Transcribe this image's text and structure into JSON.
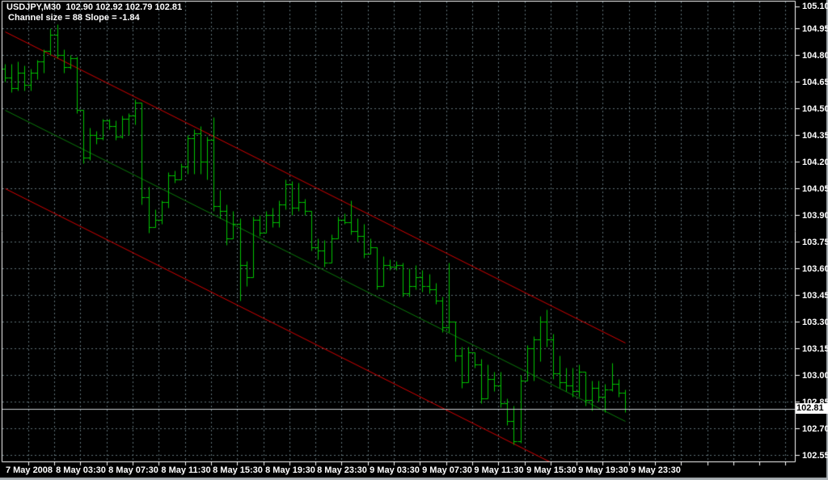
{
  "title": {
    "symbol_line": "USDJPY,M30  102.90 102.92 102.79 102.81",
    "channel_line": "Channel size = 88 Slope = -1.84"
  },
  "price_axis": {
    "labels": [
      "105.10",
      "104.95",
      "104.80",
      "104.65",
      "104.50",
      "104.35",
      "104.20",
      "104.05",
      "103.90",
      "103.75",
      "103.60",
      "103.45",
      "103.30",
      "103.15",
      "103.00",
      "102.85",
      "102.70",
      "102.55"
    ],
    "current_price": "102.81"
  },
  "time_axis": {
    "labels": [
      "7 May 2008",
      "8 May 03:30",
      "8 May 07:30",
      "8 May 11:30",
      "8 May 15:30",
      "8 May 19:30",
      "8 May 23:30",
      "9 May 03:30",
      "9 May 07:30",
      "9 May 11:30",
      "9 May 15:30",
      "9 May 19:30",
      "9 May 23:30"
    ]
  },
  "colors": {
    "background": "#000000",
    "bar": "#00c400",
    "grid": "#5f7077",
    "channel_outer": "#d40000",
    "channel_middle": "#0a7a0a",
    "text": "#ffffff",
    "current_price_line": "#c8cdd1",
    "frame": "#ffffff",
    "window_edge": "#aab0b5"
  },
  "chart_data": {
    "type": "bar",
    "subtype": "ohlc-bars",
    "symbol": "USDJPY",
    "timeframe": "M30",
    "title": "USDJPY,M30  102.90 102.92 102.79 102.81",
    "indicator": {
      "label": "Channel size = 88 Slope = -1.84",
      "channel_size_pips": 88,
      "slope": -1.84
    },
    "last_bar": {
      "open": 102.9,
      "high": 102.92,
      "low": 102.79,
      "close": 102.81
    },
    "current_price": 102.81,
    "ylim": [
      102.52,
      105.11
    ],
    "grid_price_step": 0.15,
    "price_tick_labels": [
      105.1,
      104.95,
      104.8,
      104.65,
      104.5,
      104.35,
      104.2,
      104.05,
      103.9,
      103.75,
      103.6,
      103.45,
      103.3,
      103.15,
      103.0,
      102.85,
      102.7,
      102.55
    ],
    "time_tick_labels": [
      "7 May 2008",
      "8 May 03:30",
      "8 May 07:30",
      "8 May 11:30",
      "8 May 15:30",
      "8 May 19:30",
      "8 May 23:30",
      "9 May 03:30",
      "9 May 07:30",
      "9 May 11:30",
      "9 May 15:30",
      "9 May 19:30",
      "9 May 23:30"
    ],
    "channel_lines": {
      "upper_start_price": 104.93,
      "middle_start_price": 104.49,
      "lower_start_price": 104.05,
      "slope_price_per_bar": -0.0184,
      "start_bar": 0,
      "end_bar": 95
    },
    "bars_ohlc": [
      [
        104.72,
        104.75,
        104.65,
        104.67
      ],
      [
        104.67,
        104.75,
        104.59,
        104.61
      ],
      [
        104.61,
        104.76,
        104.6,
        104.7
      ],
      [
        104.7,
        104.74,
        104.6,
        104.63
      ],
      [
        104.63,
        104.72,
        104.6,
        104.7
      ],
      [
        104.7,
        104.77,
        104.66,
        104.76
      ],
      [
        104.76,
        104.83,
        104.7,
        104.82
      ],
      [
        104.82,
        104.95,
        104.8,
        104.91
      ],
      [
        104.91,
        104.97,
        104.78,
        104.8
      ],
      [
        104.8,
        104.83,
        104.7,
        104.73
      ],
      [
        104.73,
        104.8,
        104.72,
        104.78
      ],
      [
        104.78,
        104.79,
        104.47,
        104.49
      ],
      [
        104.49,
        104.49,
        104.19,
        104.22
      ],
      [
        104.22,
        104.39,
        104.21,
        104.35
      ],
      [
        104.35,
        104.37,
        104.3,
        104.33
      ],
      [
        104.33,
        104.44,
        104.32,
        104.43
      ],
      [
        104.43,
        104.44,
        104.38,
        104.4
      ],
      [
        104.4,
        104.43,
        104.32,
        104.34
      ],
      [
        104.34,
        104.46,
        104.33,
        104.44
      ],
      [
        104.44,
        104.47,
        104.35,
        104.46
      ],
      [
        104.46,
        104.55,
        104.41,
        104.53
      ],
      [
        104.53,
        104.53,
        103.96,
        104.0
      ],
      [
        104.0,
        104.06,
        103.8,
        103.83
      ],
      [
        103.83,
        103.93,
        103.83,
        103.87
      ],
      [
        103.87,
        103.98,
        103.85,
        103.97
      ],
      [
        103.97,
        104.14,
        103.94,
        104.12
      ],
      [
        104.12,
        104.15,
        104.08,
        104.1
      ],
      [
        104.1,
        104.19,
        104.1,
        104.17
      ],
      [
        104.17,
        104.35,
        104.13,
        104.33
      ],
      [
        104.33,
        104.38,
        104.13,
        104.36
      ],
      [
        104.36,
        104.4,
        104.13,
        104.2
      ],
      [
        104.2,
        104.34,
        104.1,
        104.32
      ],
      [
        104.32,
        104.45,
        103.92,
        103.95
      ],
      [
        103.95,
        104.04,
        103.88,
        103.92
      ],
      [
        103.92,
        103.96,
        103.73,
        103.77
      ],
      [
        103.77,
        103.92,
        103.77,
        103.85
      ],
      [
        103.85,
        103.88,
        103.42,
        103.62
      ],
      [
        103.62,
        103.64,
        103.5,
        103.55
      ],
      [
        103.55,
        103.89,
        103.55,
        103.87
      ],
      [
        103.87,
        103.9,
        103.78,
        103.8
      ],
      [
        103.8,
        103.92,
        103.8,
        103.9
      ],
      [
        103.9,
        103.94,
        103.83,
        103.86
      ],
      [
        103.86,
        103.98,
        103.83,
        103.96
      ],
      [
        103.96,
        104.1,
        103.93,
        104.07
      ],
      [
        104.07,
        104.09,
        103.9,
        103.94
      ],
      [
        103.94,
        104.08,
        103.92,
        103.97
      ],
      [
        103.97,
        103.99,
        103.9,
        103.92
      ],
      [
        103.92,
        103.92,
        103.7,
        103.72
      ],
      [
        103.72,
        103.77,
        103.65,
        103.7
      ],
      [
        103.7,
        103.76,
        103.61,
        103.63
      ],
      [
        103.63,
        103.79,
        103.63,
        103.77
      ],
      [
        103.77,
        103.89,
        103.77,
        103.87
      ],
      [
        103.87,
        103.91,
        103.85,
        103.86
      ],
      [
        103.86,
        103.98,
        103.79,
        103.81
      ],
      [
        103.81,
        103.88,
        103.75,
        103.78
      ],
      [
        103.78,
        103.85,
        103.66,
        103.68
      ],
      [
        103.68,
        103.77,
        103.68,
        103.72
      ],
      [
        103.72,
        103.72,
        103.48,
        103.5
      ],
      [
        103.5,
        103.67,
        103.5,
        103.62
      ],
      [
        103.62,
        103.65,
        103.59,
        103.61
      ],
      [
        103.61,
        103.64,
        103.59,
        103.62
      ],
      [
        103.62,
        103.63,
        103.44,
        103.46
      ],
      [
        103.46,
        103.6,
        103.44,
        103.5
      ],
      [
        103.5,
        103.62,
        103.48,
        103.55
      ],
      [
        103.55,
        103.59,
        103.47,
        103.5
      ],
      [
        103.5,
        103.57,
        103.46,
        103.48
      ],
      [
        103.48,
        103.52,
        103.4,
        103.42
      ],
      [
        103.42,
        103.44,
        103.24,
        103.27
      ],
      [
        103.27,
        103.63,
        103.24,
        103.3
      ],
      [
        103.3,
        103.3,
        103.08,
        103.11
      ],
      [
        103.11,
        103.16,
        102.93,
        102.96
      ],
      [
        102.96,
        103.16,
        102.96,
        103.13
      ],
      [
        103.13,
        103.13,
        103.04,
        103.06
      ],
      [
        103.06,
        103.09,
        102.84,
        102.87
      ],
      [
        102.87,
        103.06,
        102.87,
        102.98
      ],
      [
        102.98,
        103.02,
        102.91,
        102.94
      ],
      [
        102.94,
        103.02,
        102.82,
        102.84
      ],
      [
        102.84,
        102.87,
        102.72,
        102.74
      ],
      [
        102.74,
        102.83,
        102.61,
        102.63
      ],
      [
        102.63,
        103.0,
        102.62,
        102.97
      ],
      [
        102.97,
        103.17,
        102.97,
        103.15
      ],
      [
        103.15,
        103.22,
        102.97,
        103.2
      ],
      [
        103.2,
        103.33,
        103.08,
        103.3
      ],
      [
        103.3,
        103.37,
        103.16,
        103.2
      ],
      [
        103.2,
        103.23,
        102.98,
        103.01
      ],
      [
        103.01,
        103.11,
        102.93,
        102.96
      ],
      [
        102.96,
        103.04,
        102.91,
        102.94
      ],
      [
        102.94,
        103.04,
        102.88,
        102.91
      ],
      [
        102.91,
        103.06,
        102.88,
        103.02
      ],
      [
        103.02,
        103.02,
        102.83,
        102.86
      ],
      [
        102.86,
        102.97,
        102.8,
        102.93
      ],
      [
        102.93,
        102.97,
        102.85,
        102.88
      ],
      [
        102.88,
        102.95,
        102.79,
        102.92
      ],
      [
        102.92,
        103.07,
        102.91,
        102.95
      ],
      [
        102.95,
        102.98,
        102.88,
        102.9
      ],
      [
        102.9,
        102.92,
        102.79,
        102.81
      ]
    ]
  }
}
